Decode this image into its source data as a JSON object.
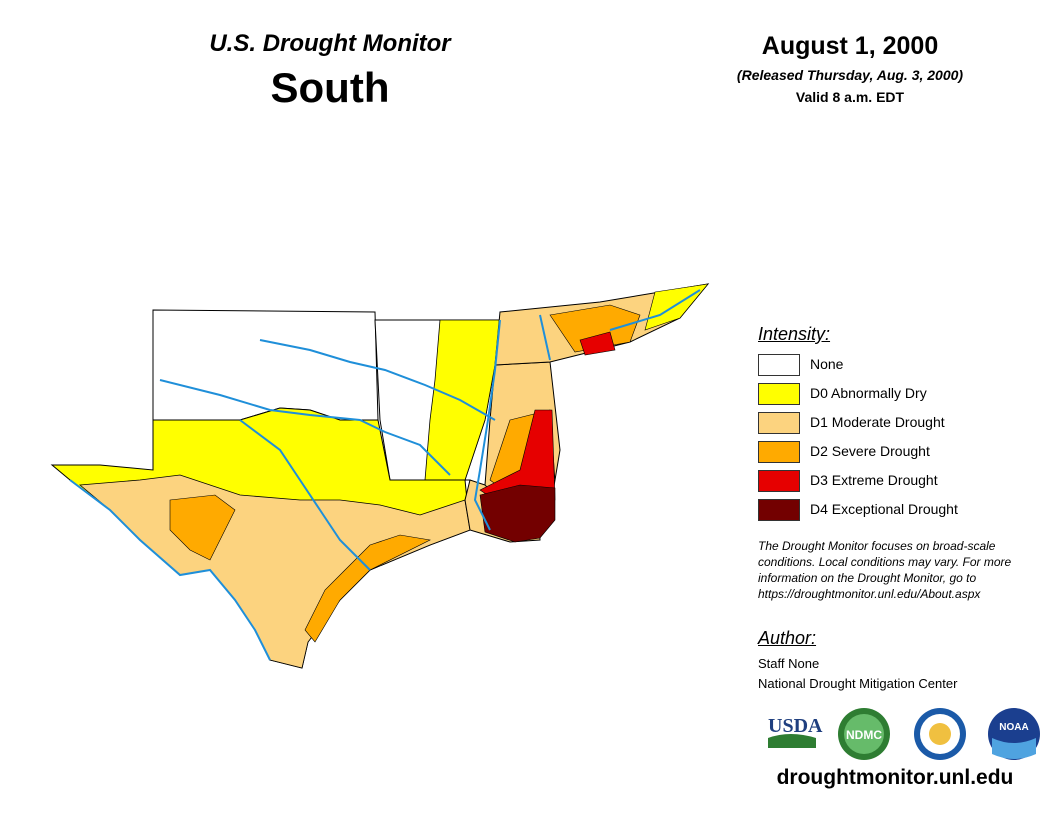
{
  "header": {
    "title": "U.S. Drought Monitor",
    "region": "South",
    "date": "August 1, 2000",
    "released": "(Released Thursday, Aug. 3, 2000)",
    "valid": "Valid 8 a.m. EDT"
  },
  "legend": {
    "title": "Intensity:",
    "items": [
      {
        "label": "None",
        "color": "#ffffff"
      },
      {
        "label": "D0 Abnormally Dry",
        "color": "#ffff00"
      },
      {
        "label": "D1 Moderate Drought",
        "color": "#fcd37f"
      },
      {
        "label": "D2 Severe Drought",
        "color": "#ffaa00"
      },
      {
        "label": "D3 Extreme Drought",
        "color": "#e60000"
      },
      {
        "label": "D4 Exceptional Drought",
        "color": "#730000"
      }
    ]
  },
  "note": "The Drought Monitor focuses on broad-scale conditions. Local conditions may vary. For more information on the Drought Monitor, go to https://droughtmonitor.unl.edu/About.aspx",
  "author": {
    "title": "Author:",
    "name": "Staff None",
    "org": "National Drought Mitigation Center"
  },
  "logos": {
    "usda": "USDA",
    "ndmc": "NDMC",
    "noaa": "NOAA"
  },
  "footer_url": "droughtmonitor.unl.edu"
}
